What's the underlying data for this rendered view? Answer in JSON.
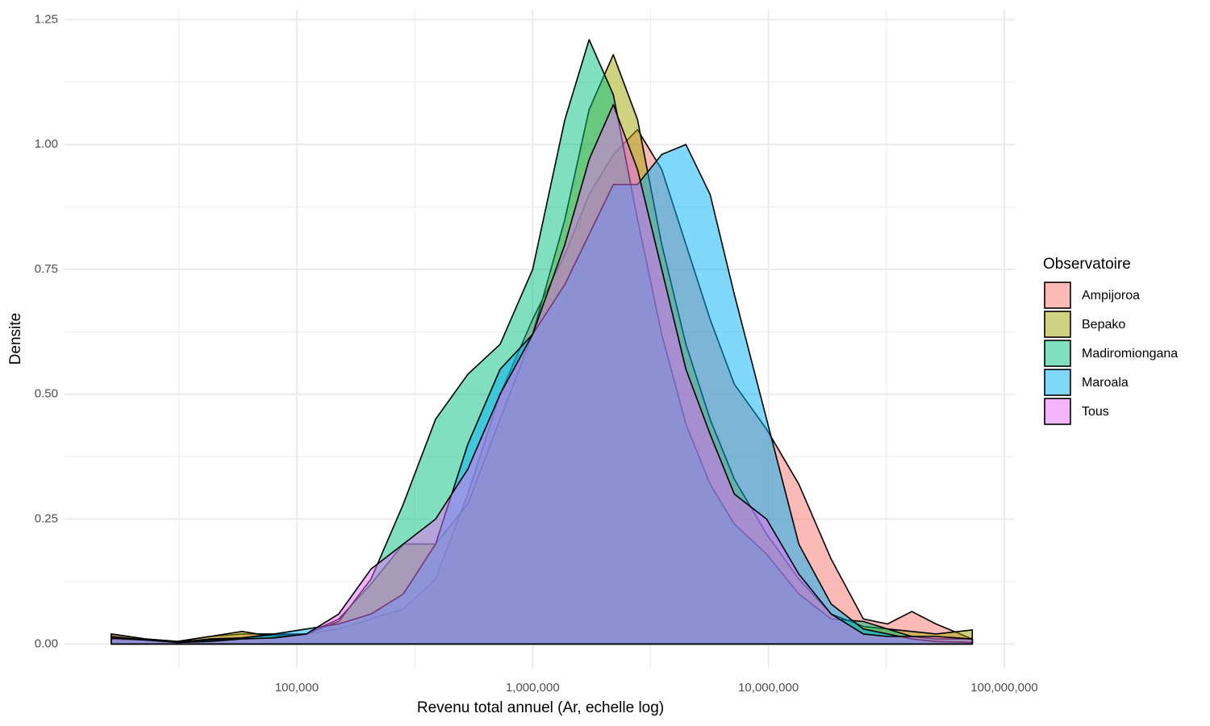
{
  "chart_data": {
    "type": "area",
    "x_scale": "log",
    "grid": true,
    "x_label": "Revenu total annuel (Ar, echelle log)",
    "y_label": "Densite",
    "legend_title": "Observatoire",
    "legend_position": "right",
    "xlim": [
      10350,
      110800000
    ],
    "xticks": [
      {
        "value": 100000,
        "label": "100,000"
      },
      {
        "value": 1000000,
        "label": "1,000,000"
      },
      {
        "value": 10000000,
        "label": "10,000,000"
      },
      {
        "value": 100000000,
        "label": "100,000,000"
      }
    ],
    "xminor": [
      31623,
      316228,
      3162278,
      31622777
    ],
    "ylim": [
      -0.048,
      1.27
    ],
    "yticks": [
      {
        "value": 0,
        "label": "0.00"
      },
      {
        "value": 0.25,
        "label": "0.25"
      },
      {
        "value": 0.5,
        "label": "0.50"
      },
      {
        "value": 0.75,
        "label": "0.75"
      },
      {
        "value": 1,
        "label": "1.00"
      },
      {
        "value": 1.25,
        "label": "1.25"
      }
    ],
    "yminor": [
      0.125,
      0.375,
      0.625,
      0.875,
      1.125
    ],
    "x": [
      16330,
      22750,
      31190,
      42740,
      58540,
      80200,
      109900,
      150600,
      206400,
      282800,
      387600,
      531100,
      727800,
      1000000,
      1370000,
      1736000,
      2198000,
      2784000,
      3527000,
      4467000,
      5657000,
      7166000,
      9820000,
      13450000,
      18440000,
      25260000,
      31990000,
      40530000,
      51330000,
      73170000
    ],
    "series": [
      {
        "name": "Ampijoroa",
        "color": "#F8766D",
        "values": [
          0.02,
          0.01,
          0.005,
          0.015,
          0.02,
          0.02,
          0.02,
          0.03,
          0.05,
          0.07,
          0.13,
          0.3,
          0.5,
          0.65,
          0.78,
          0.9,
          0.98,
          1.03,
          0.95,
          0.8,
          0.65,
          0.52,
          0.43,
          0.32,
          0.17,
          0.05,
          0.04,
          0.065,
          0.04,
          0.01
        ]
      },
      {
        "name": "Bepako",
        "color": "#A3A500",
        "values": [
          0.02,
          0.01,
          0.005,
          0.015,
          0.025,
          0.015,
          0.02,
          0.05,
          0.12,
          0.2,
          0.2,
          0.28,
          0.45,
          0.62,
          0.85,
          1.07,
          1.18,
          1.05,
          0.8,
          0.6,
          0.45,
          0.33,
          0.22,
          0.13,
          0.06,
          0.035,
          0.03,
          0.025,
          0.02,
          0.028
        ]
      },
      {
        "name": "Madiromiongana",
        "color": "#00BF7D",
        "values": [
          0.015,
          0.008,
          0.003,
          0.01,
          0.012,
          0.018,
          0.02,
          0.045,
          0.13,
          0.28,
          0.45,
          0.54,
          0.6,
          0.75,
          1.05,
          1.21,
          1.1,
          0.85,
          0.62,
          0.44,
          0.32,
          0.24,
          0.18,
          0.1,
          0.05,
          0.045,
          0.03,
          0.015,
          0.01,
          0.01
        ]
      },
      {
        "name": "Maroala",
        "color": "#00B0F6",
        "values": [
          0.01,
          0.008,
          0.005,
          0.008,
          0.012,
          0.02,
          0.03,
          0.04,
          0.06,
          0.1,
          0.2,
          0.4,
          0.55,
          0.62,
          0.72,
          0.82,
          0.92,
          0.92,
          0.98,
          1.0,
          0.9,
          0.7,
          0.45,
          0.2,
          0.08,
          0.03,
          0.02,
          0.01,
          0.005,
          0.003
        ]
      },
      {
        "name": "Tous",
        "color": "#E76BF3",
        "values": [
          0.012,
          0.008,
          0.003,
          0.005,
          0.01,
          0.012,
          0.02,
          0.06,
          0.15,
          0.2,
          0.25,
          0.35,
          0.5,
          0.62,
          0.8,
          0.97,
          1.08,
          0.95,
          0.75,
          0.55,
          0.42,
          0.3,
          0.25,
          0.14,
          0.06,
          0.02,
          0.015,
          0.015,
          0.015,
          0.01
        ]
      }
    ]
  }
}
